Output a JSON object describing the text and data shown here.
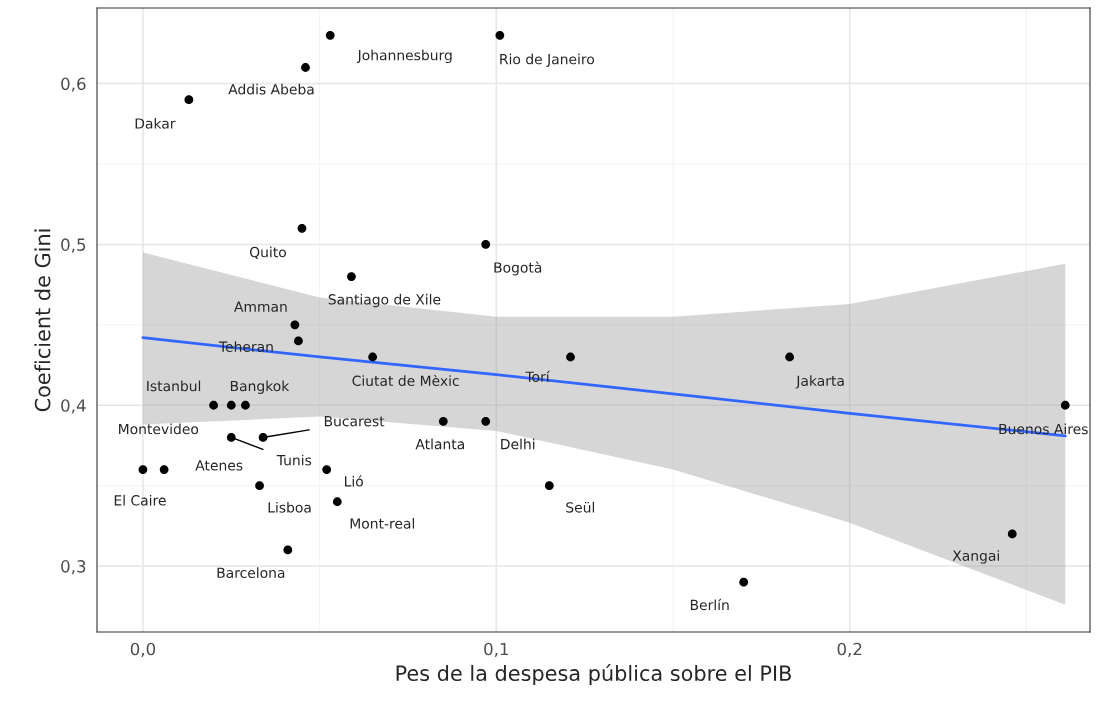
{
  "chart_data": {
    "type": "scatter",
    "xlabel": "Pes de la despesa pública sobre el PIB",
    "ylabel": "Coeficient de Gini",
    "xlim": [
      -0.013,
      0.268
    ],
    "ylim": [
      0.259,
      0.647
    ],
    "xticks": [
      {
        "value": 0.0,
        "label": "0,0"
      },
      {
        "value": 0.1,
        "label": "0,1"
      },
      {
        "value": 0.2,
        "label": "0,2"
      }
    ],
    "yticks": [
      {
        "value": 0.3,
        "label": "0,3"
      },
      {
        "value": 0.4,
        "label": "0,4"
      },
      {
        "value": 0.5,
        "label": "0,5"
      },
      {
        "value": 0.6,
        "label": "0,6"
      }
    ],
    "grid": true,
    "series": [
      {
        "marker": "circle",
        "color": "#000000",
        "x": [
          0.053,
          0.101,
          0.046,
          0.013,
          0.045,
          0.097,
          0.059,
          0.043,
          0.044,
          0.065,
          0.121,
          0.183,
          0.261,
          0.02,
          0.025,
          0.029,
          0.006,
          0.025,
          0.034,
          0.085,
          0.097,
          0.0,
          0.052,
          0.033,
          0.055,
          0.115,
          0.246,
          0.041,
          0.17
        ],
        "values": [
          0.63,
          0.63,
          0.61,
          0.59,
          0.51,
          0.5,
          0.48,
          0.45,
          0.44,
          0.43,
          0.43,
          0.43,
          0.4,
          0.4,
          0.4,
          0.4,
          0.36,
          0.38,
          0.38,
          0.39,
          0.39,
          0.36,
          0.36,
          0.35,
          0.34,
          0.35,
          0.32,
          0.31,
          0.29
        ]
      },
      {
        "type": "line",
        "color": "#3366ff",
        "x": [
          0.0,
          0.05,
          0.1,
          0.15,
          0.2,
          0.261
        ],
        "values": [
          0.442,
          0.43,
          0.419,
          0.407,
          0.395,
          0.381
        ],
        "lower": [
          0.388,
          0.393,
          0.384,
          0.36,
          0.327,
          0.276
        ],
        "upper": [
          0.495,
          0.467,
          0.455,
          0.455,
          0.463,
          0.488
        ]
      }
    ],
    "annotations": [
      {
        "text": "Johannesburg",
        "x": 0.053,
        "y": 0.63
      },
      {
        "text": "Rio de Janeiro",
        "x": 0.101,
        "y": 0.63
      },
      {
        "text": "Addis Abeba",
        "x": 0.046,
        "y": 0.61
      },
      {
        "text": "Dakar",
        "x": 0.013,
        "y": 0.59
      },
      {
        "text": "Quito",
        "x": 0.045,
        "y": 0.51
      },
      {
        "text": "Bogotà",
        "x": 0.097,
        "y": 0.5
      },
      {
        "text": "Santiago de Xile",
        "x": 0.059,
        "y": 0.48
      },
      {
        "text": "Amman",
        "x": 0.043,
        "y": 0.45
      },
      {
        "text": "Teheran",
        "x": 0.044,
        "y": 0.44
      },
      {
        "text": "Ciutat de Mèxic",
        "x": 0.065,
        "y": 0.43
      },
      {
        "text": "Torí",
        "x": 0.121,
        "y": 0.43
      },
      {
        "text": "Jakarta",
        "x": 0.183,
        "y": 0.43
      },
      {
        "text": "Buenos Aires",
        "x": 0.261,
        "y": 0.4
      },
      {
        "text": "Istanbul",
        "x": 0.02,
        "y": 0.4
      },
      {
        "text": "Montevideo",
        "x": 0.025,
        "y": 0.4
      },
      {
        "text": "Bangkok",
        "x": 0.029,
        "y": 0.4
      },
      {
        "text": "Atenes",
        "x": 0.006,
        "y": 0.36
      },
      {
        "text": "Tunis",
        "x": 0.025,
        "y": 0.38
      },
      {
        "text": "Bucarest",
        "x": 0.034,
        "y": 0.38
      },
      {
        "text": "Atlanta",
        "x": 0.085,
        "y": 0.39
      },
      {
        "text": "Delhi",
        "x": 0.097,
        "y": 0.39
      },
      {
        "text": "El Caire",
        "x": 0.0,
        "y": 0.36
      },
      {
        "text": "Lió",
        "x": 0.052,
        "y": 0.36
      },
      {
        "text": "Lisboa",
        "x": 0.033,
        "y": 0.35
      },
      {
        "text": "Mont-real",
        "x": 0.055,
        "y": 0.34
      },
      {
        "text": "Seül",
        "x": 0.115,
        "y": 0.35
      },
      {
        "text": "Xangai",
        "x": 0.246,
        "y": 0.32
      },
      {
        "text": "Barcelona",
        "x": 0.041,
        "y": 0.31
      },
      {
        "text": "Berlín",
        "x": 0.17,
        "y": 0.29
      }
    ]
  }
}
